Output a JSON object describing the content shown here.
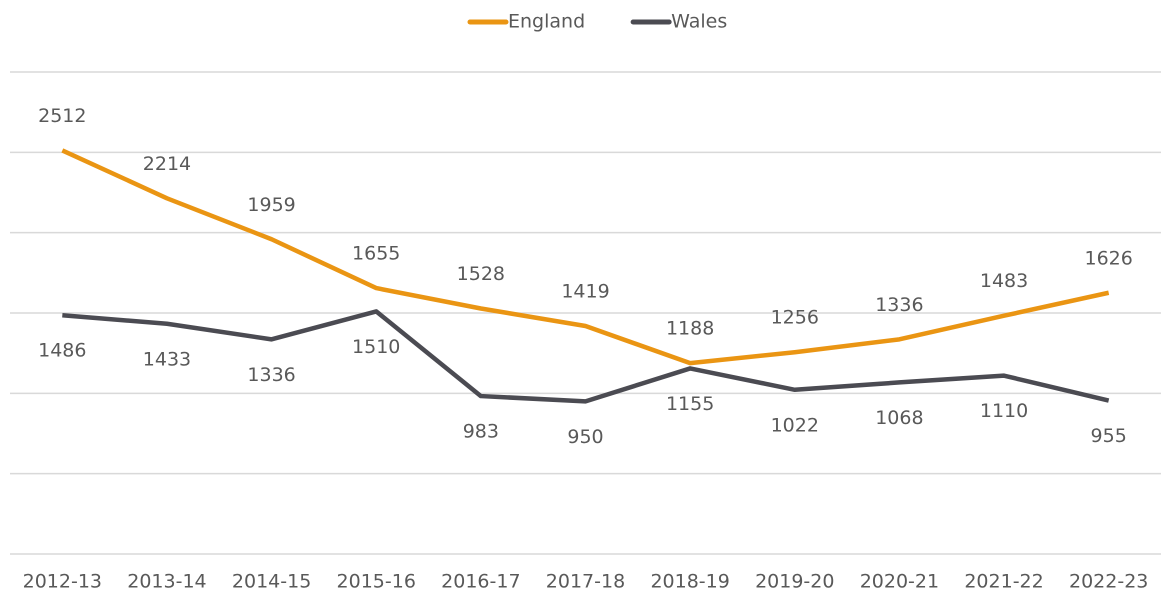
{
  "chart_data": {
    "type": "line",
    "categories": [
      "2012-13",
      "2013-14",
      "2014-15",
      "2015-16",
      "2016-17",
      "2017-18",
      "2018-19",
      "2019-20",
      "2020-21",
      "2021-22",
      "2022-23"
    ],
    "series": [
      {
        "name": "England",
        "color": "#ea9513",
        "values": [
          2512,
          2214,
          1959,
          1655,
          1528,
          1419,
          1188,
          1256,
          1336,
          1483,
          1626
        ]
      },
      {
        "name": "Wales",
        "color": "#4b4b52",
        "values": [
          1486,
          1433,
          1336,
          1510,
          983,
          950,
          1155,
          1022,
          1068,
          1110,
          955
        ]
      }
    ],
    "ylim": [
      0,
      3000
    ],
    "yticks": [
      0,
      500,
      1000,
      1500,
      2000,
      2500,
      3000
    ],
    "grid": true,
    "legend": "top"
  }
}
